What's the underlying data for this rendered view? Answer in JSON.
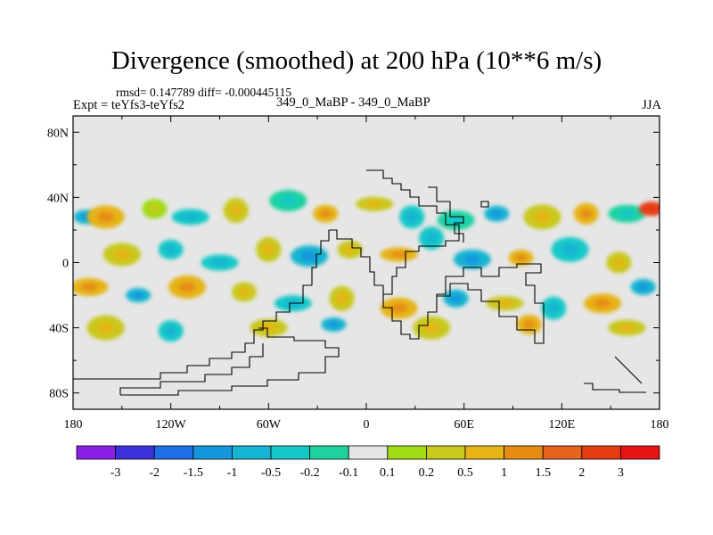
{
  "header": {
    "title": "Divergence (smoothed) at 200 hPa (10**6 m/s)",
    "stats": "rmsd= 0.147789 diff= -0.000445115",
    "experiment": "Expt = teYfs3-teYfs2",
    "cases": "349_0_MaBP - 349_0_MaBP",
    "season": "JJA"
  },
  "chart_data": {
    "type": "heatmap",
    "title": "Divergence (smoothed) at 200 hPa (10**6 m/s)",
    "xlabel": "",
    "ylabel": "",
    "xlim": [
      -180,
      180
    ],
    "ylim": [
      -90,
      90
    ],
    "x_ticks": [
      {
        "value": -180,
        "label": "180"
      },
      {
        "value": -120,
        "label": "120W"
      },
      {
        "value": -60,
        "label": "60W"
      },
      {
        "value": 0,
        "label": "0"
      },
      {
        "value": 60,
        "label": "60E"
      },
      {
        "value": 120,
        "label": "120E"
      },
      {
        "value": 180,
        "label": "180"
      }
    ],
    "y_ticks": [
      {
        "value": 80,
        "label": "80N"
      },
      {
        "value": 40,
        "label": "40N"
      },
      {
        "value": 0,
        "label": "0"
      },
      {
        "value": -40,
        "label": "40S"
      },
      {
        "value": -80,
        "label": "80S"
      }
    ],
    "colorbar": {
      "labels": [
        "-3",
        "-2",
        "-1.5",
        "-1",
        "-0.5",
        "-0.2",
        "-0.1",
        "0.1",
        "0.2",
        "0.5",
        "1",
        "1.5",
        "2",
        "3"
      ],
      "colors": [
        "#8c1ee6",
        "#3c32dc",
        "#1e6ee6",
        "#1496dc",
        "#14b4d2",
        "#14c8c8",
        "#1ed2a0",
        "#e6e6e6",
        "#a0dc14",
        "#c8c81e",
        "#e6b414",
        "#e68c14",
        "#e6641e",
        "#e63c14",
        "#e61414"
      ]
    },
    "background_color": "#e6e6e6",
    "anomaly_blobs": [
      {
        "lon": -172,
        "lat": 28,
        "level": 4
      },
      {
        "lon": -160,
        "lat": 28,
        "level": 10
      },
      {
        "lon": -130,
        "lat": 33,
        "level": 8
      },
      {
        "lon": -108,
        "lat": 28,
        "level": 5
      },
      {
        "lon": -80,
        "lat": 32,
        "level": 9
      },
      {
        "lon": -48,
        "lat": 38,
        "level": 6
      },
      {
        "lon": -25,
        "lat": 30,
        "level": 10
      },
      {
        "lon": 5,
        "lat": 36,
        "level": 9
      },
      {
        "lon": 28,
        "lat": 28,
        "level": 5
      },
      {
        "lon": 55,
        "lat": 26,
        "level": 6
      },
      {
        "lon": 80,
        "lat": 30,
        "level": 4
      },
      {
        "lon": 108,
        "lat": 28,
        "level": 9
      },
      {
        "lon": 135,
        "lat": 30,
        "level": 10
      },
      {
        "lon": 160,
        "lat": 30,
        "level": 6
      },
      {
        "lon": 175,
        "lat": 33,
        "level": 13
      },
      {
        "lon": -150,
        "lat": 5,
        "level": 9
      },
      {
        "lon": -120,
        "lat": 8,
        "level": 5
      },
      {
        "lon": -90,
        "lat": 0,
        "level": 5
      },
      {
        "lon": -60,
        "lat": 8,
        "level": 9
      },
      {
        "lon": -35,
        "lat": 4,
        "level": 4
      },
      {
        "lon": -10,
        "lat": 8,
        "level": 9
      },
      {
        "lon": 20,
        "lat": 5,
        "level": 10
      },
      {
        "lon": 40,
        "lat": 15,
        "level": 5
      },
      {
        "lon": 65,
        "lat": 2,
        "level": 4
      },
      {
        "lon": 95,
        "lat": 3,
        "level": 10
      },
      {
        "lon": 125,
        "lat": 8,
        "level": 5
      },
      {
        "lon": 155,
        "lat": 0,
        "level": 9
      },
      {
        "lon": -170,
        "lat": -15,
        "level": 10
      },
      {
        "lon": -140,
        "lat": -20,
        "level": 4
      },
      {
        "lon": -110,
        "lat": -15,
        "level": 10
      },
      {
        "lon": -75,
        "lat": -18,
        "level": 9
      },
      {
        "lon": -45,
        "lat": -25,
        "level": 5
      },
      {
        "lon": -15,
        "lat": -22,
        "level": 9
      },
      {
        "lon": 20,
        "lat": -28,
        "level": 10
      },
      {
        "lon": 55,
        "lat": -22,
        "level": 4
      },
      {
        "lon": 85,
        "lat": -25,
        "level": 9
      },
      {
        "lon": 115,
        "lat": -28,
        "level": 5
      },
      {
        "lon": 145,
        "lat": -25,
        "level": 10
      },
      {
        "lon": 170,
        "lat": -15,
        "level": 4
      },
      {
        "lon": -160,
        "lat": -40,
        "level": 9
      },
      {
        "lon": -120,
        "lat": -42,
        "level": 5
      },
      {
        "lon": -60,
        "lat": -40,
        "level": 9
      },
      {
        "lon": -20,
        "lat": -38,
        "level": 4
      },
      {
        "lon": 40,
        "lat": -40,
        "level": 9
      },
      {
        "lon": 100,
        "lat": -38,
        "level": 10
      },
      {
        "lon": 160,
        "lat": -40,
        "level": 9
      }
    ]
  }
}
